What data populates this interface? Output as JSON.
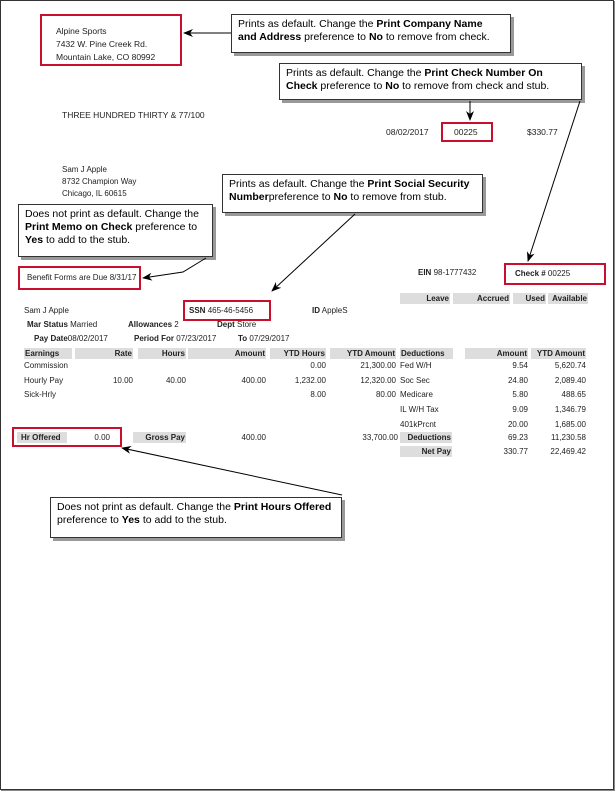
{
  "company": {
    "name": "Alpine Sports",
    "address1": "7432 W. Pine Creek Rd.",
    "address2": "Mountain Lake, CO  80992"
  },
  "callouts": {
    "company": {
      "pre": "Prints as default. Change the ",
      "bold": "Print Company Name and Address",
      "mid": " preference to ",
      "val": "No",
      "post": " to remove from check."
    },
    "checknum": {
      "pre": "Prints as default. Change the ",
      "bold": "Print Check Number On Check",
      "mid": " preference to ",
      "val": "No",
      "post": " to remove from check and stub."
    },
    "ssn": {
      "pre": "Prints as default. Change the ",
      "bold": "Print Social Security Number",
      "mid": "preference to ",
      "val": "No",
      "post": " to remove from stub."
    },
    "memo": {
      "pre": "Does not print as default. Change the ",
      "bold": "Print Memo on Check",
      "mid": " preference to ",
      "val": "Yes",
      "post": " to add to the stub."
    },
    "hours": {
      "pre": "Does not print as default. Change the ",
      "bold": "Print Hours Offered",
      "mid": " preference to ",
      "val": "Yes",
      "post": " to add to the stub."
    }
  },
  "check": {
    "amount_words": "THREE HUNDRED THIRTY & 77/100",
    "date": "08/02/2017",
    "number": "00225",
    "amount": "$330.77"
  },
  "payee": {
    "name": "Sam J Apple",
    "address1": "8732 Champion Way",
    "address2": "Chicago, IL  60615"
  },
  "memo": "Benefit Forms are Due 8/31/17",
  "stub": {
    "ein_label": "EIN",
    "ein": "98-1777432",
    "checkno_label": "Check #",
    "checkno": "00225",
    "leave_headers": [
      "Leave",
      "Accrued",
      "Used",
      "Available"
    ],
    "employee": "Sam J Apple",
    "ssn_label": "SSN",
    "ssn": "465-46-5456",
    "id_label": "ID",
    "id": "AppleS",
    "mar_label": "Mar Status",
    "mar": "Married",
    "allow_label": "Allowances",
    "allow": "2",
    "dept_label": "Dept",
    "dept": "Store",
    "paydate_label": "Pay Date",
    "paydate": "08/02/2017",
    "period_label": "Period For",
    "period": "07/23/2017",
    "to_label": "To",
    "to": "07/29/2017",
    "headers": [
      "Earnings",
      "Rate",
      "Hours",
      "Amount",
      "YTD Hours",
      "YTD Amount",
      "Deductions",
      "Amount",
      "YTD Amount"
    ],
    "rows": [
      [
        "Commission",
        "",
        "",
        "",
        "0.00",
        "21,300.00",
        "Fed W/H",
        "9.54",
        "5,620.74"
      ],
      [
        "Hourly Pay",
        "10.00",
        "40.00",
        "400.00",
        "1,232.00",
        "12,320.00",
        "Soc Sec",
        "24.80",
        "2,089.40"
      ],
      [
        "Sick-Hrly",
        "",
        "",
        "",
        "8.00",
        "80.00",
        "Medicare",
        "5.80",
        "488.65"
      ],
      [
        "",
        "",
        "",
        "",
        "",
        "",
        "IL W/H Tax",
        "9.09",
        "1,346.79"
      ],
      [
        "",
        "",
        "",
        "",
        "",
        "",
        "401kPrcnt",
        "20.00",
        "1,685.00"
      ]
    ],
    "hr_offered_label": "Hr Offered",
    "hr_offered": "0.00",
    "gross_label": "Gross Pay",
    "gross": "400.00",
    "gross_ytd": "33,700.00",
    "ded_label": "Deductions",
    "ded": "69.23",
    "ded_ytd": "11,230.58",
    "net_label": "Net Pay",
    "net": "330.77",
    "net_ytd": "22,469.42"
  }
}
